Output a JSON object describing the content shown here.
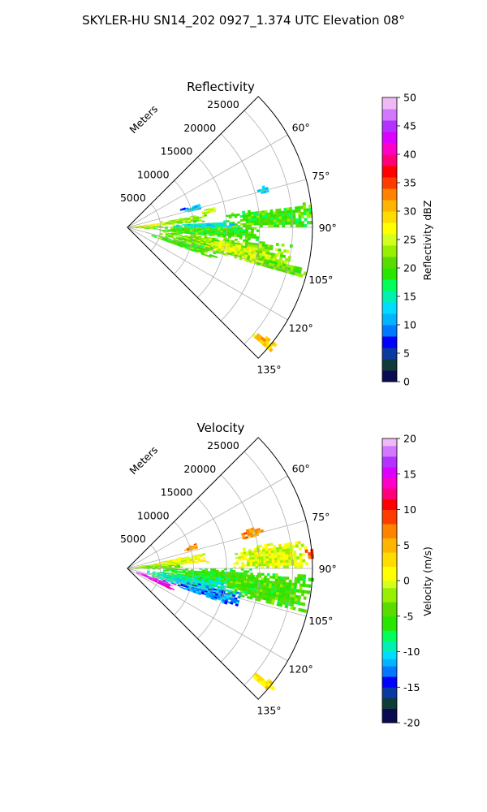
{
  "figure": {
    "title": "SKYLER-HU  SN14_202  0927_1.374 UTC Elevation 08°"
  },
  "chart_data": [
    {
      "type": "heatmap",
      "subtype": "polar-sector",
      "title": "Reflectivity",
      "radial_axis": {
        "label": "Meters",
        "range": [
          0,
          28000
        ],
        "ticks": [
          5000,
          10000,
          15000,
          20000,
          25000
        ]
      },
      "angular_axis": {
        "unit": "degrees",
        "range": [
          45,
          135
        ],
        "ticks": [
          60,
          75,
          90,
          105,
          120,
          135
        ],
        "tick_labels": [
          "60°",
          "75°",
          "90°",
          "105°",
          "120°",
          "135°"
        ]
      },
      "grid": true,
      "colorbar": {
        "label": "Reflectivity dBZ",
        "range": [
          0,
          50
        ],
        "ticks": [
          0,
          5,
          10,
          15,
          20,
          25,
          30,
          35,
          40,
          45,
          50
        ],
        "colormap": [
          {
            "v": 0,
            "c": "#0a0a50"
          },
          {
            "v": 2,
            "c": "#0f3b3b"
          },
          {
            "v": 4,
            "c": "#0a3aa0"
          },
          {
            "v": 6,
            "c": "#0000ff"
          },
          {
            "v": 8,
            "c": "#0078ff"
          },
          {
            "v": 10,
            "c": "#00b4ff"
          },
          {
            "v": 12,
            "c": "#00dcff"
          },
          {
            "v": 14,
            "c": "#00f0b4"
          },
          {
            "v": 16,
            "c": "#00ff5a"
          },
          {
            "v": 18,
            "c": "#28e600"
          },
          {
            "v": 20,
            "c": "#5adc00"
          },
          {
            "v": 22,
            "c": "#96f000"
          },
          {
            "v": 24,
            "c": "#d2ff1e"
          },
          {
            "v": 26,
            "c": "#ffff00"
          },
          {
            "v": 28,
            "c": "#ffdc00"
          },
          {
            "v": 30,
            "c": "#ffb400"
          },
          {
            "v": 32,
            "c": "#ff8200"
          },
          {
            "v": 34,
            "c": "#ff3c00"
          },
          {
            "v": 36,
            "c": "#ff0000"
          },
          {
            "v": 38,
            "c": "#ff0078"
          },
          {
            "v": 40,
            "c": "#ff00c8"
          },
          {
            "v": 42,
            "c": "#dc00ff"
          },
          {
            "v": 44,
            "c": "#b432ff"
          },
          {
            "v": 46,
            "c": "#d278ff"
          },
          {
            "v": 48,
            "c": "#eebaf5"
          },
          {
            "v": 50,
            "c": "#ffeaff"
          }
        ]
      },
      "regions": [
        {
          "az": [
            82,
            87
          ],
          "r": [
            0,
            7000
          ],
          "value": 27
        },
        {
          "az": [
            86,
            94
          ],
          "r": [
            0,
            4500
          ],
          "value": 24
        },
        {
          "az": [
            80,
            86
          ],
          "r": [
            5000,
            12000
          ],
          "value": 22
        },
        {
          "az": [
            76,
            80
          ],
          "r": [
            11500,
            13500
          ],
          "value": 25
        },
        {
          "az": [
            72,
            76
          ],
          "r": [
            9000,
            11500
          ],
          "value": 12
        },
        {
          "az": [
            88,
            96
          ],
          "r": [
            4000,
            20000
          ],
          "value": 20
        },
        {
          "az": [
            82,
            90
          ],
          "r": [
            15000,
            28000
          ],
          "value": 20
        },
        {
          "az": [
            96,
            106
          ],
          "r": [
            5000,
            25000
          ],
          "value": 22
        },
        {
          "az": [
            98,
            104
          ],
          "r": [
            12000,
            20000
          ],
          "value": 26
        },
        {
          "az": [
            100,
            106
          ],
          "r": [
            17000,
            23000
          ],
          "value": 24
        },
        {
          "az": [
            102,
            106
          ],
          "r": [
            20000,
            28000
          ],
          "value": 21
        },
        {
          "az": [
            104,
            110
          ],
          "r": [
            3000,
            14000
          ],
          "value": 20
        },
        {
          "az": [
            86,
            90
          ],
          "r": [
            7000,
            16000
          ],
          "value": 14
        },
        {
          "az": [
            73,
            76
          ],
          "r": [
            20000,
            22000
          ],
          "value": 14
        },
        {
          "az": [
            70,
            73
          ],
          "r": [
            8000,
            9500
          ],
          "value": 6
        },
        {
          "az": [
            128,
            131
          ],
          "r": [
            25000,
            28500
          ],
          "value": 30
        }
      ]
    },
    {
      "type": "heatmap",
      "subtype": "polar-sector",
      "title": "Velocity",
      "radial_axis": {
        "label": "Meters",
        "range": [
          0,
          28000
        ],
        "ticks": [
          5000,
          10000,
          15000,
          20000,
          25000
        ]
      },
      "angular_axis": {
        "unit": "degrees",
        "range": [
          45,
          135
        ],
        "ticks": [
          60,
          75,
          90,
          105,
          120,
          135
        ],
        "tick_labels": [
          "60°",
          "75°",
          "90°",
          "105°",
          "120°",
          "135°"
        ]
      },
      "grid": true,
      "colorbar": {
        "label": "Velocity (m/s)",
        "range": [
          -20,
          20
        ],
        "ticks": [
          -20,
          -15,
          -10,
          -5,
          0,
          5,
          10,
          15,
          20
        ],
        "colormap": [
          {
            "v": -20,
            "c": "#0a0a50"
          },
          {
            "v": -18,
            "c": "#0f3b3b"
          },
          {
            "v": -16.5,
            "c": "#0a3aa0"
          },
          {
            "v": -15,
            "c": "#0000ff"
          },
          {
            "v": -13.5,
            "c": "#0078ff"
          },
          {
            "v": -12,
            "c": "#00b4ff"
          },
          {
            "v": -11,
            "c": "#00dcff"
          },
          {
            "v": -10,
            "c": "#00f0b4"
          },
          {
            "v": -8.5,
            "c": "#00ff5a"
          },
          {
            "v": -7,
            "c": "#28e600"
          },
          {
            "v": -5,
            "c": "#5adc00"
          },
          {
            "v": -3,
            "c": "#96f000"
          },
          {
            "v": -1,
            "c": "#d2ff1e"
          },
          {
            "v": 0,
            "c": "#ffff00"
          },
          {
            "v": 2,
            "c": "#ffdc00"
          },
          {
            "v": 4,
            "c": "#ffb400"
          },
          {
            "v": 6,
            "c": "#ff8200"
          },
          {
            "v": 8,
            "c": "#ff3c00"
          },
          {
            "v": 10,
            "c": "#ff0000"
          },
          {
            "v": 11.5,
            "c": "#ff0078"
          },
          {
            "v": 13,
            "c": "#ff00c8"
          },
          {
            "v": 14.5,
            "c": "#dc00ff"
          },
          {
            "v": 16,
            "c": "#b432ff"
          },
          {
            "v": 17.5,
            "c": "#d278ff"
          },
          {
            "v": 19,
            "c": "#eebaf5"
          },
          {
            "v": 20,
            "c": "#ffeaff"
          }
        ]
      },
      "regions": [
        {
          "az": [
            80,
            92
          ],
          "r": [
            0,
            8000
          ],
          "value": -3
        },
        {
          "az": [
            78,
            86
          ],
          "r": [
            4000,
            12000
          ],
          "value": 1
        },
        {
          "az": [
            80,
            90
          ],
          "r": [
            16000,
            27000
          ],
          "value": 0
        },
        {
          "az": [
            70,
            74
          ],
          "r": [
            9000,
            11000
          ],
          "value": 6
        },
        {
          "az": [
            72,
            76
          ],
          "r": [
            18000,
            21000
          ],
          "value": 6
        },
        {
          "az": [
            90,
            100
          ],
          "r": [
            5000,
            20000
          ],
          "value": -6
        },
        {
          "az": [
            92,
            104
          ],
          "r": [
            14000,
            28000
          ],
          "value": -5
        },
        {
          "az": [
            96,
            108
          ],
          "r": [
            3000,
            16000
          ],
          "value": -9
        },
        {
          "az": [
            102,
            110
          ],
          "r": [
            8000,
            18000
          ],
          "value": -12
        },
        {
          "az": [
            108,
            116
          ],
          "r": [
            1500,
            7500
          ],
          "value": 16
        },
        {
          "az": [
            112,
            116
          ],
          "r": [
            3500,
            7500
          ],
          "value": 14
        },
        {
          "az": [
            128,
            131
          ],
          "r": [
            25000,
            28500
          ],
          "value": 2
        },
        {
          "az": [
            84,
            87
          ],
          "r": [
            27000,
            28000
          ],
          "value": 8
        }
      ]
    }
  ]
}
